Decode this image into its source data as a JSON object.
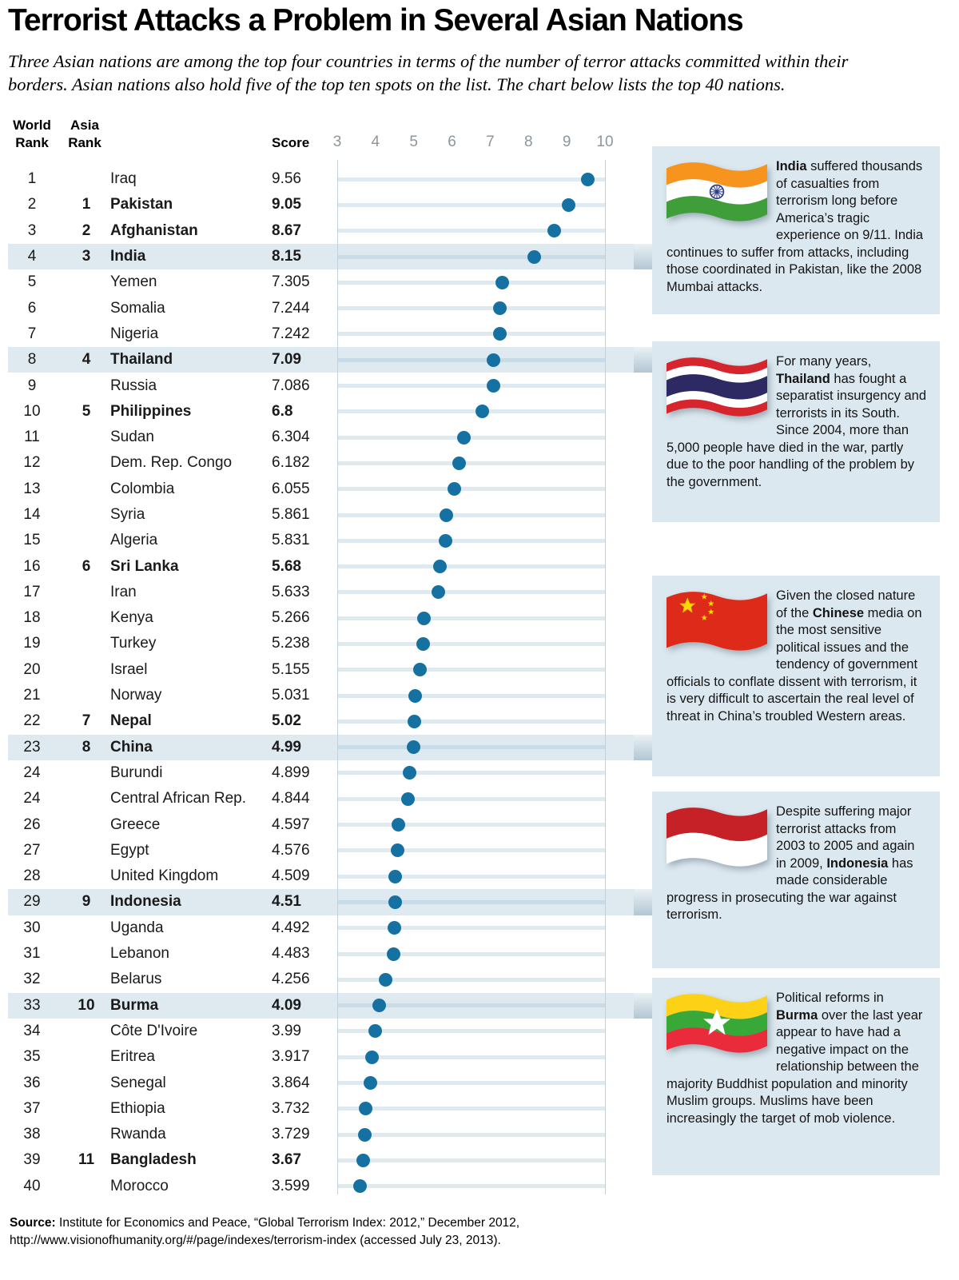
{
  "title": "Terrorist Attacks a Problem in Several Asian Nations",
  "subtitle": "Three Asian nations are among the top four countries in terms of the number of terror attacks committed within their borders. Asian nations also hold five of the top ten spots on the list. The chart below lists the top 40 nations.",
  "table": {
    "headers": {
      "world_line1": "World",
      "world_line2": "Rank",
      "asia_line1": "Asia",
      "asia_line2": "Rank",
      "score": "Score"
    }
  },
  "chart_data": {
    "type": "dot-plot",
    "xlabel": "Score",
    "xlim": [
      3,
      10
    ],
    "ticks": [
      "3",
      "4",
      "5",
      "6",
      "7",
      "8",
      "9",
      "10"
    ],
    "rows": [
      {
        "world": "1",
        "asia": "",
        "country": "Iraq",
        "score": "9.56",
        "bold": false,
        "highlight": false
      },
      {
        "world": "2",
        "asia": "1",
        "country": "Pakistan",
        "score": "9.05",
        "bold": true,
        "highlight": false
      },
      {
        "world": "3",
        "asia": "2",
        "country": "Afghanistan",
        "score": "8.67",
        "bold": true,
        "highlight": false
      },
      {
        "world": "4",
        "asia": "3",
        "country": "India",
        "score": "8.15",
        "bold": true,
        "highlight": true
      },
      {
        "world": "5",
        "asia": "",
        "country": "Yemen",
        "score": "7.305",
        "bold": false,
        "highlight": false
      },
      {
        "world": "6",
        "asia": "",
        "country": "Somalia",
        "score": "7.244",
        "bold": false,
        "highlight": false
      },
      {
        "world": "7",
        "asia": "",
        "country": "Nigeria",
        "score": "7.242",
        "bold": false,
        "highlight": false
      },
      {
        "world": "8",
        "asia": "4",
        "country": "Thailand",
        "score": "7.09",
        "bold": true,
        "highlight": true
      },
      {
        "world": "9",
        "asia": "",
        "country": "Russia",
        "score": "7.086",
        "bold": false,
        "highlight": false
      },
      {
        "world": "10",
        "asia": "5",
        "country": "Philippines",
        "score": "6.8",
        "bold": true,
        "highlight": false
      },
      {
        "world": "11",
        "asia": "",
        "country": "Sudan",
        "score": "6.304",
        "bold": false,
        "highlight": false
      },
      {
        "world": "12",
        "asia": "",
        "country": "Dem. Rep. Congo",
        "score": "6.182",
        "bold": false,
        "highlight": false
      },
      {
        "world": "13",
        "asia": "",
        "country": "Colombia",
        "score": "6.055",
        "bold": false,
        "highlight": false
      },
      {
        "world": "14",
        "asia": "",
        "country": "Syria",
        "score": "5.861",
        "bold": false,
        "highlight": false
      },
      {
        "world": "15",
        "asia": "",
        "country": "Algeria",
        "score": "5.831",
        "bold": false,
        "highlight": false
      },
      {
        "world": "16",
        "asia": "6",
        "country": "Sri Lanka",
        "score": "5.68",
        "bold": true,
        "highlight": false
      },
      {
        "world": "17",
        "asia": "",
        "country": "Iran",
        "score": "5.633",
        "bold": false,
        "highlight": false
      },
      {
        "world": "18",
        "asia": "",
        "country": "Kenya",
        "score": "5.266",
        "bold": false,
        "highlight": false
      },
      {
        "world": "19",
        "asia": "",
        "country": "Turkey",
        "score": "5.238",
        "bold": false,
        "highlight": false
      },
      {
        "world": "20",
        "asia": "",
        "country": "Israel",
        "score": "5.155",
        "bold": false,
        "highlight": false
      },
      {
        "world": "21",
        "asia": "",
        "country": "Norway",
        "score": "5.031",
        "bold": false,
        "highlight": false
      },
      {
        "world": "22",
        "asia": "7",
        "country": "Nepal",
        "score": "5.02",
        "bold": true,
        "highlight": false
      },
      {
        "world": "23",
        "asia": "8",
        "country": "China",
        "score": "4.99",
        "bold": true,
        "highlight": true
      },
      {
        "world": "24",
        "asia": "",
        "country": "Burundi",
        "score": "4.899",
        "bold": false,
        "highlight": false
      },
      {
        "world": "24",
        "asia": "",
        "country": "Central African Rep.",
        "score": "4.844",
        "bold": false,
        "highlight": false
      },
      {
        "world": "26",
        "asia": "",
        "country": "Greece",
        "score": "4.597",
        "bold": false,
        "highlight": false
      },
      {
        "world": "27",
        "asia": "",
        "country": "Egypt",
        "score": "4.576",
        "bold": false,
        "highlight": false
      },
      {
        "world": "28",
        "asia": "",
        "country": "United Kingdom",
        "score": "4.509",
        "bold": false,
        "highlight": false
      },
      {
        "world": "29",
        "asia": "9",
        "country": "Indonesia",
        "score": "4.51",
        "bold": true,
        "highlight": true
      },
      {
        "world": "30",
        "asia": "",
        "country": "Uganda",
        "score": "4.492",
        "bold": false,
        "highlight": false
      },
      {
        "world": "31",
        "asia": "",
        "country": "Lebanon",
        "score": "4.483",
        "bold": false,
        "highlight": false
      },
      {
        "world": "32",
        "asia": "",
        "country": "Belarus",
        "score": "4.256",
        "bold": false,
        "highlight": false
      },
      {
        "world": "33",
        "asia": "10",
        "country": "Burma",
        "score": "4.09",
        "bold": true,
        "highlight": true
      },
      {
        "world": "34",
        "asia": "",
        "country": "Côte D'Ivoire",
        "score": "3.99",
        "bold": false,
        "highlight": false
      },
      {
        "world": "35",
        "asia": "",
        "country": "Eritrea",
        "score": "3.917",
        "bold": false,
        "highlight": false
      },
      {
        "world": "36",
        "asia": "",
        "country": "Senegal",
        "score": "3.864",
        "bold": false,
        "highlight": false
      },
      {
        "world": "37",
        "asia": "",
        "country": "Ethiopia",
        "score": "3.732",
        "bold": false,
        "highlight": false
      },
      {
        "world": "38",
        "asia": "",
        "country": "Rwanda",
        "score": "3.729",
        "bold": false,
        "highlight": false
      },
      {
        "world": "39",
        "asia": "11",
        "country": "Bangladesh",
        "score": "3.67",
        "bold": true,
        "highlight": false
      },
      {
        "world": "40",
        "asia": "",
        "country": "Morocco",
        "score": "3.599",
        "bold": false,
        "highlight": false
      }
    ]
  },
  "sidebar": {
    "boxes": [
      {
        "flag": "india-flag",
        "pre": "",
        "bold": "India",
        "post": " suffered thousands of casualties from terrorism long before America’s tragic experience on 9/11. India continues to suffer from attacks, including those coordinated in Pakistan, like the 2008 Mumbai attacks."
      },
      {
        "flag": "thailand-flag",
        "pre": "For many years, ",
        "bold": "Thailand",
        "post": " has fought a separatist insurgency and terrorists in its South. Since 2004, more than 5,000 people have died in the war, partly due to the poor handling of the problem by the government."
      },
      {
        "flag": "china-flag",
        "pre": "Given the closed nature of the ",
        "bold": "Chinese",
        "post": " media on the most sensitive political issues and the tendency of government officials to conflate dissent with terrorism, it is very difficult to ascertain the real level of threat in China’s troubled Western areas."
      },
      {
        "flag": "indonesia-flag",
        "pre": "Despite suffering major terrorist attacks from 2003 to 2005 and again in 2009, ",
        "bold": "Indonesia",
        "post": " has made considerable progress in prosecuting the war against terrorism."
      },
      {
        "flag": "burma-flag",
        "pre": "Political reforms in ",
        "bold": "Burma",
        "post": " over the last year appear to have had a negative impact on the relationship between the majority Buddhist population and minority Muslim groups. Muslims have been increasingly the target of mob violence."
      }
    ]
  },
  "source": {
    "label": "Source:",
    "text": " Institute for Economics and Peace, “Global Terrorism Index: 2012,” December 2012,",
    "line2": "http://www.visionofhumanity.org/#/page/indexes/terrorism-index (accessed July 23, 2013)."
  },
  "colors": {
    "dot": "#1571a1",
    "highlight_stripe": "#dee9f0",
    "annotation_box_bg": "#dce8ef",
    "row_gridline": "#dfeaf0",
    "axis_line": "#c2d1da",
    "tick_text": "#8d969c"
  }
}
